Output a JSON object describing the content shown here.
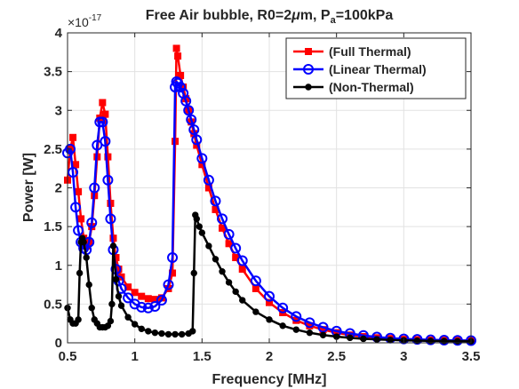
{
  "chart_data": {
    "type": "line",
    "title_parts": {
      "main": "Free Air bubble, R0=2",
      "mu": "μ",
      "m": "m, P",
      "sub": "a",
      "tail": "=100kPa"
    },
    "xlabel": "Frequency [MHz]",
    "ylabel": "Power [W]",
    "y_exponent": {
      "base": "×10",
      "power": "-17"
    },
    "xlim": [
      0.5,
      3.5
    ],
    "ylim": [
      0,
      4
    ],
    "xticks": [
      "0.5",
      "1",
      "1.5",
      "2",
      "2.5",
      "3",
      "3.5"
    ],
    "yticks": [
      "0",
      "0.5",
      "1",
      "1.5",
      "2",
      "2.5",
      "3",
      "3.5",
      "4"
    ],
    "xtick_values": [
      0.5,
      1,
      1.5,
      2,
      2.5,
      3,
      3.5
    ],
    "ytick_values": [
      0,
      0.5,
      1,
      1.5,
      2,
      2.5,
      3,
      3.5,
      4
    ],
    "grid": true,
    "legend_position": "top-right",
    "series": [
      {
        "name": "(Full Thermal)",
        "color": "#ff0000",
        "marker": "square",
        "x": [
          0.5,
          0.52,
          0.54,
          0.56,
          0.58,
          0.6,
          0.62,
          0.64,
          0.66,
          0.68,
          0.7,
          0.72,
          0.74,
          0.76,
          0.78,
          0.8,
          0.82,
          0.84,
          0.86,
          0.88,
          0.9,
          0.95,
          1.0,
          1.05,
          1.1,
          1.15,
          1.2,
          1.25,
          1.28,
          1.3,
          1.31,
          1.32,
          1.34,
          1.36,
          1.38,
          1.4,
          1.42,
          1.44,
          1.46,
          1.5,
          1.55,
          1.6,
          1.65,
          1.7,
          1.75,
          1.8,
          1.9,
          2.0,
          2.1,
          2.2,
          2.3,
          2.4,
          2.5,
          2.6,
          2.7,
          2.8,
          2.9,
          3.0,
          3.1,
          3.2,
          3.3,
          3.4,
          3.5
        ],
        "y": [
          2.1,
          2.5,
          2.65,
          2.3,
          1.95,
          1.6,
          1.35,
          1.25,
          1.3,
          1.5,
          1.9,
          2.4,
          2.9,
          3.1,
          2.95,
          2.4,
          1.8,
          1.35,
          1.1,
          0.95,
          0.85,
          0.72,
          0.65,
          0.6,
          0.57,
          0.56,
          0.58,
          0.7,
          0.9,
          2.6,
          3.8,
          3.7,
          3.45,
          3.3,
          3.15,
          3.0,
          2.85,
          2.7,
          2.55,
          2.3,
          2.0,
          1.72,
          1.48,
          1.28,
          1.1,
          0.95,
          0.7,
          0.52,
          0.39,
          0.29,
          0.22,
          0.17,
          0.13,
          0.1,
          0.08,
          0.065,
          0.055,
          0.045,
          0.04,
          0.035,
          0.032,
          0.03,
          0.028
        ]
      },
      {
        "name": "(Linear Thermal)",
        "color": "#0000ff",
        "marker": "circle",
        "x": [
          0.5,
          0.52,
          0.54,
          0.56,
          0.58,
          0.6,
          0.62,
          0.64,
          0.66,
          0.68,
          0.7,
          0.72,
          0.74,
          0.76,
          0.78,
          0.8,
          0.82,
          0.84,
          0.86,
          0.88,
          0.9,
          0.95,
          1.0,
          1.05,
          1.1,
          1.15,
          1.2,
          1.25,
          1.28,
          1.3,
          1.31,
          1.32,
          1.34,
          1.36,
          1.38,
          1.4,
          1.42,
          1.44,
          1.46,
          1.5,
          1.55,
          1.6,
          1.65,
          1.7,
          1.75,
          1.8,
          1.9,
          2.0,
          2.1,
          2.2,
          2.3,
          2.4,
          2.5,
          2.6,
          2.7,
          2.8,
          2.9,
          3.0,
          3.1,
          3.2,
          3.3,
          3.4,
          3.5
        ],
        "y": [
          2.45,
          2.5,
          2.2,
          1.75,
          1.45,
          1.3,
          1.22,
          1.2,
          1.3,
          1.55,
          2.0,
          2.55,
          2.85,
          2.85,
          2.6,
          2.1,
          1.6,
          1.2,
          0.95,
          0.8,
          0.7,
          0.58,
          0.5,
          0.46,
          0.45,
          0.47,
          0.55,
          0.75,
          1.1,
          3.3,
          3.37,
          3.35,
          3.3,
          3.22,
          3.12,
          3.0,
          2.88,
          2.75,
          2.62,
          2.38,
          2.1,
          1.83,
          1.6,
          1.4,
          1.22,
          1.06,
          0.8,
          0.6,
          0.45,
          0.34,
          0.26,
          0.2,
          0.15,
          0.12,
          0.095,
          0.075,
          0.06,
          0.05,
          0.044,
          0.038,
          0.034,
          0.031,
          0.029
        ]
      },
      {
        "name": "(Non-Thermal)",
        "color": "#000000",
        "marker": "dot",
        "x": [
          0.5,
          0.52,
          0.54,
          0.56,
          0.58,
          0.59,
          0.6,
          0.61,
          0.62,
          0.64,
          0.66,
          0.68,
          0.7,
          0.72,
          0.74,
          0.76,
          0.78,
          0.8,
          0.82,
          0.83,
          0.84,
          0.86,
          0.88,
          0.9,
          0.95,
          1.0,
          1.05,
          1.1,
          1.15,
          1.2,
          1.25,
          1.3,
          1.35,
          1.4,
          1.43,
          1.44,
          1.45,
          1.46,
          1.48,
          1.5,
          1.55,
          1.6,
          1.65,
          1.7,
          1.75,
          1.8,
          1.9,
          2.0,
          2.1,
          2.2,
          2.3,
          2.4,
          2.5,
          2.6,
          2.7,
          2.8,
          2.9,
          3.0,
          3.1,
          3.2,
          3.3,
          3.4,
          3.5
        ],
        "y": [
          0.45,
          0.3,
          0.25,
          0.25,
          0.3,
          0.9,
          1.3,
          1.35,
          1.3,
          1.1,
          0.75,
          0.45,
          0.3,
          0.25,
          0.2,
          0.2,
          0.2,
          0.22,
          0.28,
          0.5,
          1.25,
          0.82,
          0.6,
          0.48,
          0.33,
          0.24,
          0.18,
          0.15,
          0.13,
          0.12,
          0.11,
          0.11,
          0.11,
          0.12,
          0.15,
          0.9,
          1.65,
          1.6,
          1.5,
          1.42,
          1.25,
          1.08,
          0.92,
          0.78,
          0.66,
          0.55,
          0.4,
          0.3,
          0.22,
          0.17,
          0.13,
          0.1,
          0.08,
          0.065,
          0.052,
          0.044,
          0.037,
          0.032,
          0.028,
          0.025,
          0.023,
          0.021,
          0.02
        ]
      }
    ]
  }
}
